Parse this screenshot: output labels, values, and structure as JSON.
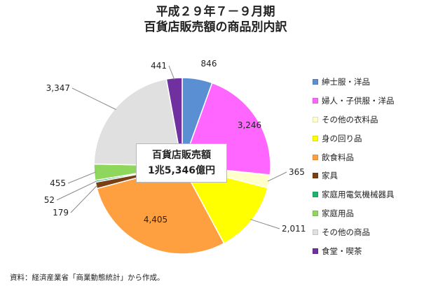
{
  "title": {
    "line1": "平成２９年７－９月期",
    "line2": "百貨店販売額の商品別内訳"
  },
  "center_label": {
    "line1": "百貨店販売額",
    "line2": "1兆5,346億円"
  },
  "source": "資料：経済産業省「商業動態統計」から作成。",
  "chart_data": {
    "type": "pie",
    "title": "平成２９年７－９月期 百貨店販売額の商品別内訳",
    "total_label": "1兆5,346億円",
    "legend_position": "right",
    "start_angle_deg": 0,
    "direction": "clockwise",
    "slices": [
      {
        "label": "紳士服・洋品",
        "value": 846,
        "value_label": "846",
        "color": "#5b8fd4"
      },
      {
        "label": "婦人・子供服・洋品",
        "value": 3246,
        "value_label": "3,246",
        "color": "#ff66ff"
      },
      {
        "label": "その他の衣料品",
        "value": 365,
        "value_label": "365",
        "color": "#ffffcc"
      },
      {
        "label": "身の回り品",
        "value": 2011,
        "value_label": "2,011",
        "color": "#ffff00"
      },
      {
        "label": "飲食料品",
        "value": 4405,
        "value_label": "4,405",
        "color": "#ffa040"
      },
      {
        "label": "家具",
        "value": 179,
        "value_label": "179",
        "color": "#7b3f14"
      },
      {
        "label": "家庭用電気機械器具",
        "value": 52,
        "value_label": "52",
        "color": "#1eb36b"
      },
      {
        "label": "家庭用品",
        "value": 455,
        "value_label": "455",
        "color": "#8fd65c"
      },
      {
        "label": "その他の商品",
        "value": 3347,
        "value_label": "3,347",
        "color": "#e0e0e0"
      },
      {
        "label": "食堂・喫茶",
        "value": 441,
        "value_label": "441",
        "color": "#7030a0"
      }
    ]
  }
}
